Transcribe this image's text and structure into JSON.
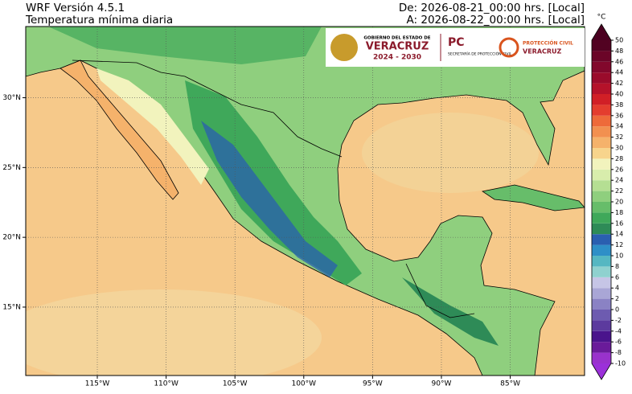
{
  "header": {
    "model": "WRF Versión 4.5.1",
    "title": "Temperatura mínima diaria",
    "from": "De: 2026-08-21_00:00 hrs. [Local]",
    "to": "A: 2026-08-22_00:00 hrs. [Local]"
  },
  "logos": {
    "gov_line": "GOBIERNO DEL ESTADO DE",
    "gov_state": "VERACRUZ",
    "gov_years": "2024 - 2030",
    "pc": "PC",
    "pc_sub": "SECRETARÍA DE PROTECCIÓN CIVIL",
    "pc2_line": "PROTECCIÓN CIVIL",
    "pc2_state": "VERACRUZ"
  },
  "map": {
    "xlim": [
      -120.2,
      -79.6
    ],
    "ylim": [
      10.1,
      35.1
    ],
    "grid": true,
    "xticks": [
      {
        "value": -115,
        "label": "115°W"
      },
      {
        "value": -110,
        "label": "110°W"
      },
      {
        "value": -105,
        "label": "105°W"
      },
      {
        "value": -100,
        "label": "100°W"
      },
      {
        "value": -95,
        "label": "95°W"
      },
      {
        "value": -90,
        "label": "90°W"
      },
      {
        "value": -85,
        "label": "85°W"
      }
    ],
    "yticks": [
      {
        "value": 15,
        "label": "15°N"
      },
      {
        "value": 20,
        "label": "20°N"
      },
      {
        "value": 25,
        "label": "25°N"
      },
      {
        "value": 30,
        "label": "30°N"
      }
    ]
  },
  "colorbar": {
    "label": "°C",
    "ticks": [
      -10,
      -8,
      -6,
      -4,
      -2,
      0,
      2,
      4,
      6,
      8,
      10,
      12,
      14,
      16,
      18,
      20,
      22,
      24,
      26,
      28,
      30,
      32,
      34,
      36,
      38,
      40,
      42,
      44,
      46,
      48,
      50
    ],
    "colors": [
      "#9932cc",
      "#6a1b9a",
      "#4a148c",
      "#5c3a9e",
      "#6d5bb0",
      "#8a82c4",
      "#a9a6d6",
      "#c6c5e6",
      "#8fd1cf",
      "#55b7c2",
      "#2e8fc7",
      "#2a5fb0",
      "#2e8b57",
      "#3fa85a",
      "#67bd6a",
      "#8fcf7e",
      "#b5df93",
      "#d8edac",
      "#f2f3bd",
      "#f7d48c",
      "#f5b26b",
      "#f29050",
      "#ee6a3a",
      "#e43d2e",
      "#d11f26",
      "#b5122a",
      "#9a0b2b",
      "#82082c",
      "#6b0528",
      "#520222"
    ],
    "under_color": "#9b30d9",
    "over_color": "#4a0020"
  }
}
